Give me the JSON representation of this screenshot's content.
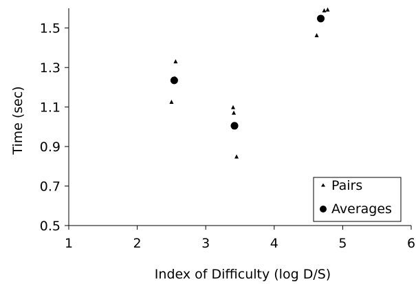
{
  "chart_data": {
    "type": "scatter",
    "title": "",
    "xlabel": "Index of Difficulty (log D/S)",
    "ylabel": "Time (sec)",
    "xlim": [
      1,
      6
    ],
    "ylim": [
      0.5,
      1.6
    ],
    "x_ticks": [
      1,
      2,
      3,
      4,
      5,
      6
    ],
    "y_ticks": [
      0.5,
      0.7,
      0.9,
      1.1,
      1.3,
      1.5
    ],
    "x_tick_labels": [
      "1",
      "2",
      "3",
      "4",
      "5",
      "6"
    ],
    "y_tick_labels": [
      "0.5",
      "0.7",
      "0.9",
      "1.1",
      "1.3",
      "1.5"
    ],
    "grid": false,
    "legend_position": "bottom-right",
    "series": [
      {
        "name": "Pairs",
        "marker": "triangle",
        "color": "#000000",
        "points": [
          {
            "x": 2.5,
            "y": 1.125
          },
          {
            "x": 2.55,
            "y": 1.245
          },
          {
            "x": 2.56,
            "y": 1.33
          },
          {
            "x": 3.4,
            "y": 1.098
          },
          {
            "x": 3.41,
            "y": 1.07
          },
          {
            "x": 3.45,
            "y": 0.848
          },
          {
            "x": 4.62,
            "y": 1.462
          },
          {
            "x": 4.73,
            "y": 1.588
          },
          {
            "x": 4.78,
            "y": 1.592
          }
        ]
      },
      {
        "name": "Averages",
        "marker": "circle",
        "color": "#000000",
        "points": [
          {
            "x": 2.54,
            "y": 1.235
          },
          {
            "x": 3.42,
            "y": 1.005
          },
          {
            "x": 4.68,
            "y": 1.548
          }
        ]
      }
    ]
  }
}
